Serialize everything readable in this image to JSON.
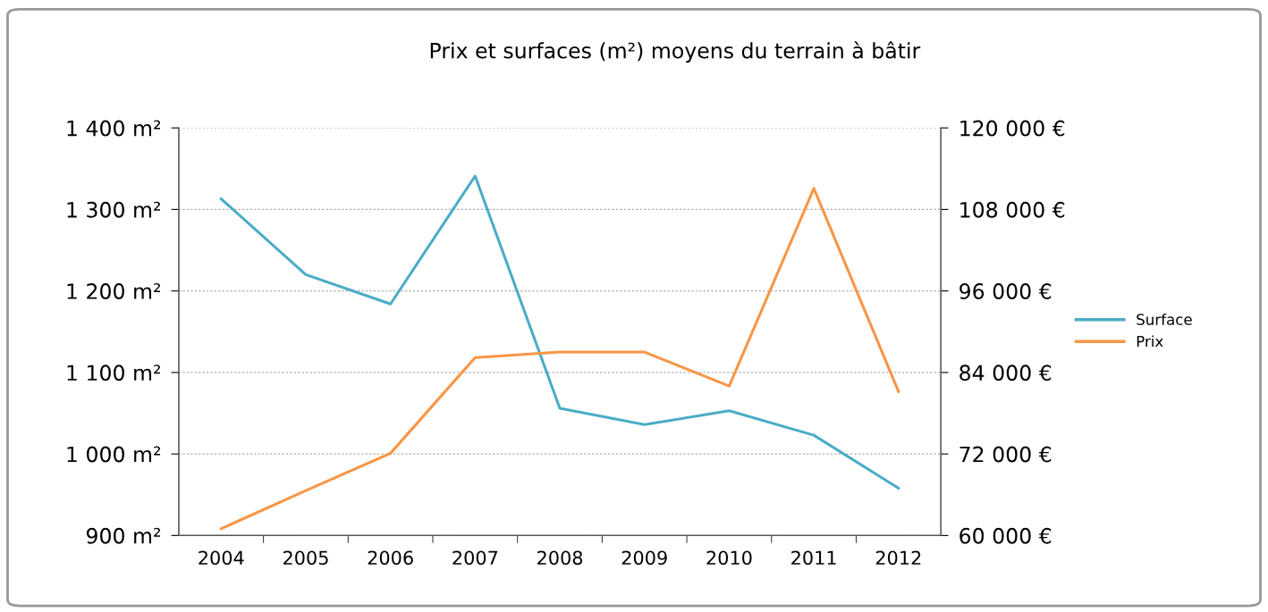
{
  "chart_data": {
    "type": "line",
    "title": "Prix et surfaces (m²) moyens du terrain à bâtir",
    "categories": [
      "2004",
      "2005",
      "2006",
      "2007",
      "2008",
      "2009",
      "2010",
      "2011",
      "2012"
    ],
    "series": [
      {
        "name": "Surface",
        "color": "#4bacc6",
        "values": [
          1313,
          1220,
          1184,
          1341,
          1056,
          1036,
          1053,
          1023,
          958
        ]
      },
      {
        "name": "Prix",
        "color": "#f79646",
        "axis": "y2",
        "values": [
          61000,
          66600,
          72100,
          86200,
          87000,
          87000,
          82000,
          111100,
          81200
        ]
      }
    ],
    "ylim": [
      900,
      1400
    ],
    "yticks": [
      {
        "value": 900,
        "label": "900 m²"
      },
      {
        "value": 1000,
        "label": "1 000 m²"
      },
      {
        "value": 1100,
        "label": "1 100 m²"
      },
      {
        "value": 1200,
        "label": "1 200 m²"
      },
      {
        "value": 1300,
        "label": "1 300 m²"
      },
      {
        "value": 1400,
        "label": "1 400 m²"
      }
    ],
    "y2lim": [
      60000,
      120000
    ],
    "y2ticks": [
      {
        "value": 60000,
        "label": "60 000 €"
      },
      {
        "value": 72000,
        "label": "72 000 €"
      },
      {
        "value": 84000,
        "label": "84 000 €"
      },
      {
        "value": 96000,
        "label": "96 000 €"
      },
      {
        "value": 108000,
        "label": "108 000 €"
      },
      {
        "value": 120000,
        "label": "120 000 €"
      }
    ],
    "grid": "y",
    "legend": "right",
    "marker": "none",
    "line_style": "solid"
  }
}
